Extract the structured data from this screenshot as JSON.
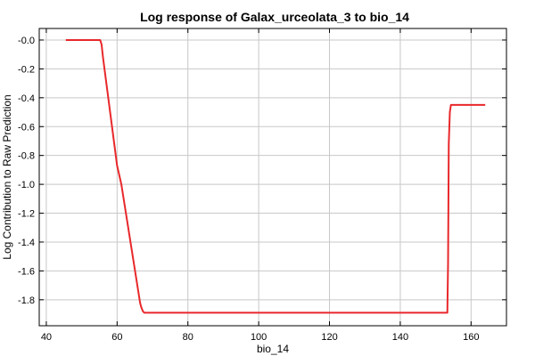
{
  "chart_data": {
    "type": "line",
    "title": "Log response of Galax_urceolata_3 to bio_14",
    "xlabel": "bio_14",
    "ylabel": "Log Contribution to Raw Prediction",
    "xlim": [
      38,
      170
    ],
    "ylim": [
      -1.98,
      0.08
    ],
    "xticks": [
      40,
      60,
      80,
      100,
      120,
      140,
      160
    ],
    "yticks": [
      0.0,
      -0.2,
      -0.4,
      -0.6,
      -0.8,
      -1.0,
      -1.2,
      -1.4,
      -1.6,
      -1.8
    ],
    "ytick_labels": [
      "-0.0",
      "-0.2",
      "-0.4",
      "-0.6",
      "-0.8",
      "-1.0",
      "-1.2",
      "-1.4",
      "-1.6",
      "-1.8"
    ],
    "grid": true,
    "series": [
      {
        "color": "#e8282b",
        "x": [
          45.5,
          55.2,
          55.6,
          56.0,
          60.0,
          61.2,
          66.5,
          66.8,
          67.3,
          67.7,
          153.3,
          153.5,
          153.7,
          154.0,
          154.3,
          164.0
        ],
        "y": [
          0.0,
          0.0,
          -0.03,
          -0.12,
          -0.87,
          -1.0,
          -1.82,
          -1.85,
          -1.88,
          -1.89,
          -1.89,
          -1.55,
          -0.72,
          -0.5,
          -0.45,
          -0.45
        ]
      }
    ]
  }
}
